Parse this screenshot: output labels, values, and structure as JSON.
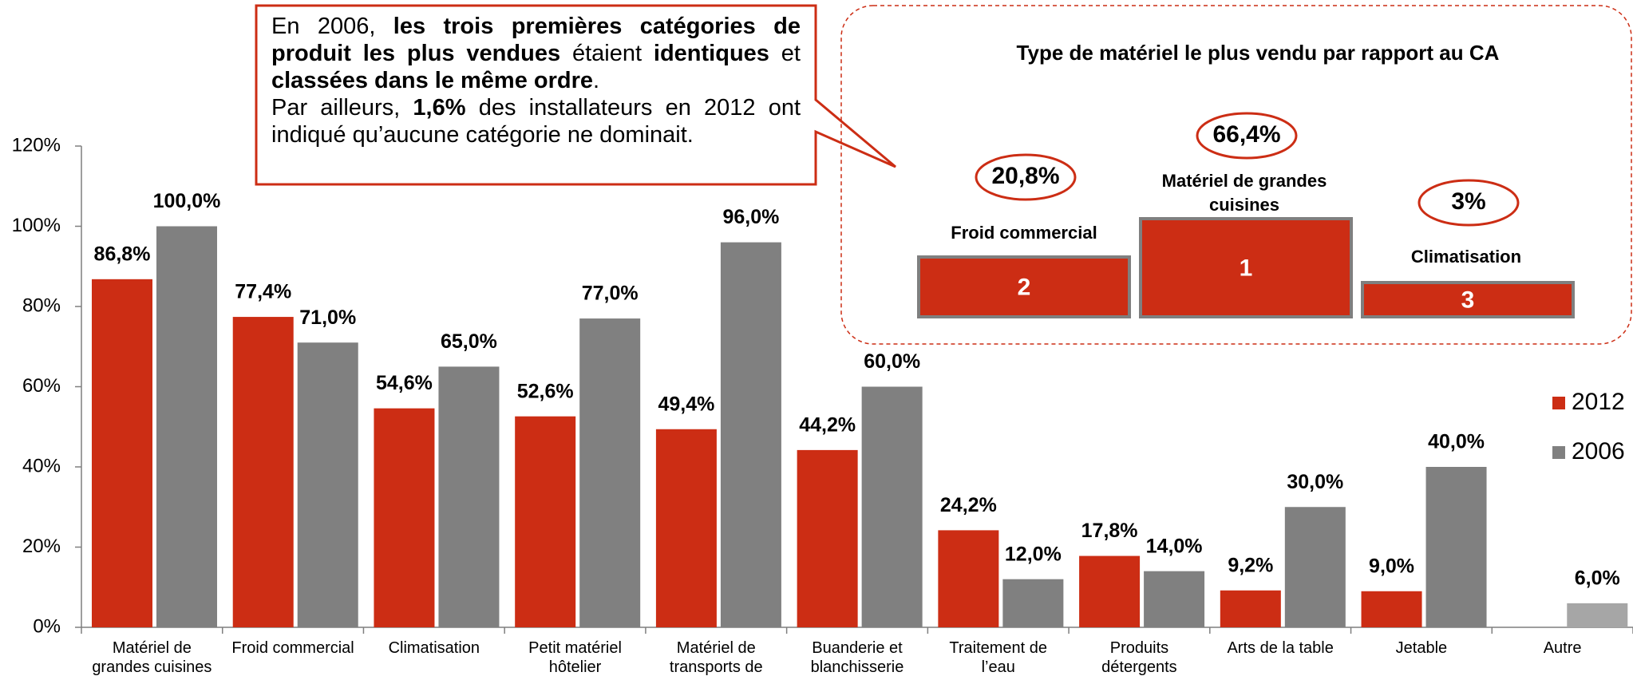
{
  "chart_data": {
    "type": "bar",
    "categories": [
      "Matériel de grandes cuisines",
      "Froid commercial",
      "Climatisation",
      "Petit matériel hôtelier",
      "Matériel de transports de repas",
      "Buanderie et blanchisserie",
      "Traitement de l’eau",
      "Produits détergents",
      "Arts de la table",
      "Jetable",
      "Autre"
    ],
    "series": [
      {
        "name": "2012",
        "color": "#cc2d14",
        "values": [
          86.8,
          77.4,
          54.6,
          52.6,
          49.4,
          44.2,
          24.2,
          17.8,
          9.2,
          9.0,
          null
        ],
        "value_labels": [
          "86,8%",
          "77,4%",
          "54,6%",
          "52,6%",
          "49,4%",
          "44,2%",
          "24,2%",
          "17,8%",
          "9,2%",
          "9,0%",
          null
        ]
      },
      {
        "name": "2006",
        "color": "#808080",
        "point_colors": [
          "#808080",
          "#808080",
          "#808080",
          "#808080",
          "#808080",
          "#808080",
          "#808080",
          "#808080",
          "#808080",
          "#808080",
          "#a6a6a6"
        ],
        "values": [
          100.0,
          71.0,
          65.0,
          77.0,
          96.0,
          60.0,
          12.0,
          14.0,
          30.0,
          40.0,
          6.0
        ],
        "value_labels": [
          "100,0%",
          "71,0%",
          "65,0%",
          "77,0%",
          "96,0%",
          "60,0%",
          "12,0%",
          "14,0%",
          "30,0%",
          "40,0%",
          "6,0%"
        ]
      }
    ],
    "ylim": [
      0,
      120
    ],
    "yticks": [
      {
        "value": 0,
        "label": "0%"
      },
      {
        "value": 20,
        "label": "20%"
      },
      {
        "value": 40,
        "label": "40%"
      },
      {
        "value": 60,
        "label": "60%"
      },
      {
        "value": 80,
        "label": "80%"
      },
      {
        "value": 100,
        "label": "100%"
      },
      {
        "value": 120,
        "label": "120%"
      }
    ],
    "grid": false,
    "legend": "right"
  },
  "callout": {
    "paragraphs": [
      [
        {
          "text": "En 2006, ",
          "bold": false
        },
        {
          "text": "les trois premières catégories de produit les plus vendues",
          "bold": true
        },
        {
          "text": " étaient ",
          "bold": false
        },
        {
          "text": "identiques",
          "bold": true
        },
        {
          "text": " et ",
          "bold": false
        },
        {
          "text": "classées dans le même ordre",
          "bold": true
        },
        {
          "text": ".",
          "bold": false
        }
      ],
      [
        {
          "text": "Par ailleurs, ",
          "bold": false
        },
        {
          "text": "1,6%",
          "bold": true
        },
        {
          "text": " des installateurs en 2012 ont indiqué qu’aucune catégorie ne dominait.",
          "bold": false
        }
      ]
    ]
  },
  "podium": {
    "title": "Type de matériel le plus vendu par rapport au CA",
    "items": [
      {
        "rank": "2",
        "label": "Froid commercial",
        "value": "20,8%"
      },
      {
        "rank": "1",
        "label": "Matériel de grandes cuisines",
        "value": "66,4%"
      },
      {
        "rank": "3",
        "label": "Climatisation",
        "value": "3%"
      }
    ]
  }
}
